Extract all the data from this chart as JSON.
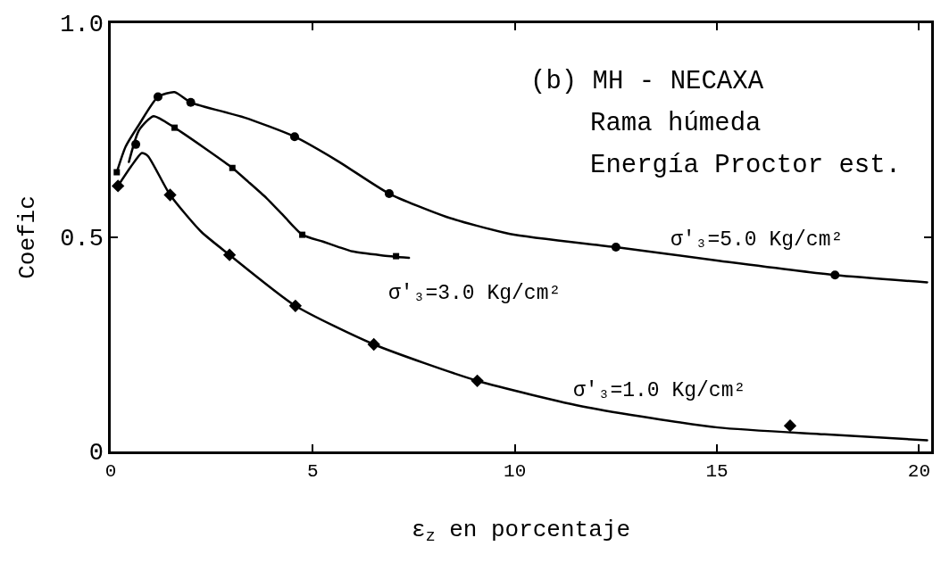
{
  "chart_data": {
    "type": "line",
    "xlabel": "ε$_{z}$ en porcentaje",
    "ylabel": "Coefic",
    "xlim": [
      0,
      20.3
    ],
    "ylim": [
      0,
      1
    ],
    "xticks": [
      0,
      5,
      10,
      15,
      20
    ],
    "yticks": [
      0,
      0.5,
      {
        "value": 1,
        "label": "1.0"
      }
    ],
    "line_style": "solid",
    "annotations": [
      "(b) MH - NECAXA",
      "Rama húmeda",
      "Energía Proctor est."
    ],
    "series": [
      {
        "type": "scatter",
        "marker": "circle",
        "color": "#000000",
        "x": [
          0.62,
          1.17,
          1.98,
          4.55,
          6.89,
          12.5,
          17.92
        ],
        "values": [
          0.717,
          0.828,
          0.815,
          0.735,
          0.602,
          0.477,
          0.412
        ]
      },
      {
        "type": "scatter",
        "marker": "square",
        "color": "#000000",
        "x": [
          0.15,
          1.58,
          3.01,
          4.74,
          7.06
        ],
        "values": [
          0.652,
          0.756,
          0.662,
          0.506,
          0.456
        ]
      },
      {
        "type": "scatter",
        "marker": "diamond",
        "color": "#000000",
        "x": [
          0.18,
          1.47,
          2.94,
          4.57,
          6.51,
          9.07,
          16.81
        ],
        "values": [
          0.62,
          0.599,
          0.459,
          0.34,
          0.25,
          0.165,
          0.06
        ]
      },
      {
        "name": "σ'₃=5.0 Kg/cm²",
        "color": "#000000",
        "x": [
          0.15,
          0.37,
          0.7,
          1.17,
          1.58,
          1.98,
          3.3,
          4.55,
          5.62,
          6.89,
          8.3,
          9.88,
          12.5,
          15.08,
          17.92,
          20.2
        ],
        "values": [
          0.652,
          0.712,
          0.763,
          0.828,
          0.839,
          0.815,
          0.78,
          0.735,
          0.678,
          0.602,
          0.548,
          0.508,
          0.477,
          0.445,
          0.412,
          0.395
        ]
      },
      {
        "name": "σ'₃=3.0 Kg/cm²",
        "color": "#000000",
        "x": [
          0.45,
          0.7,
          1.06,
          1.58,
          2.3,
          3.01,
          3.4,
          3.85,
          4.3,
          4.74,
          5.25,
          5.62,
          5.98,
          6.7,
          7.38
        ],
        "values": [
          0.676,
          0.75,
          0.783,
          0.756,
          0.71,
          0.662,
          0.63,
          0.592,
          0.548,
          0.506,
          0.49,
          0.478,
          0.467,
          0.458,
          0.452
        ]
      },
      {
        "name": "σ'₃=1.0 Kg/cm²",
        "color": "#000000",
        "x": [
          0.18,
          0.5,
          0.77,
          0.92,
          1.47,
          2.24,
          2.94,
          4.57,
          6.51,
          9.07,
          11.78,
          15.02,
          17.66,
          20.2
        ],
        "values": [
          0.62,
          0.665,
          0.697,
          0.69,
          0.599,
          0.513,
          0.459,
          0.34,
          0.25,
          0.165,
          0.103,
          0.056,
          0.04,
          0.026
        ]
      }
    ]
  }
}
